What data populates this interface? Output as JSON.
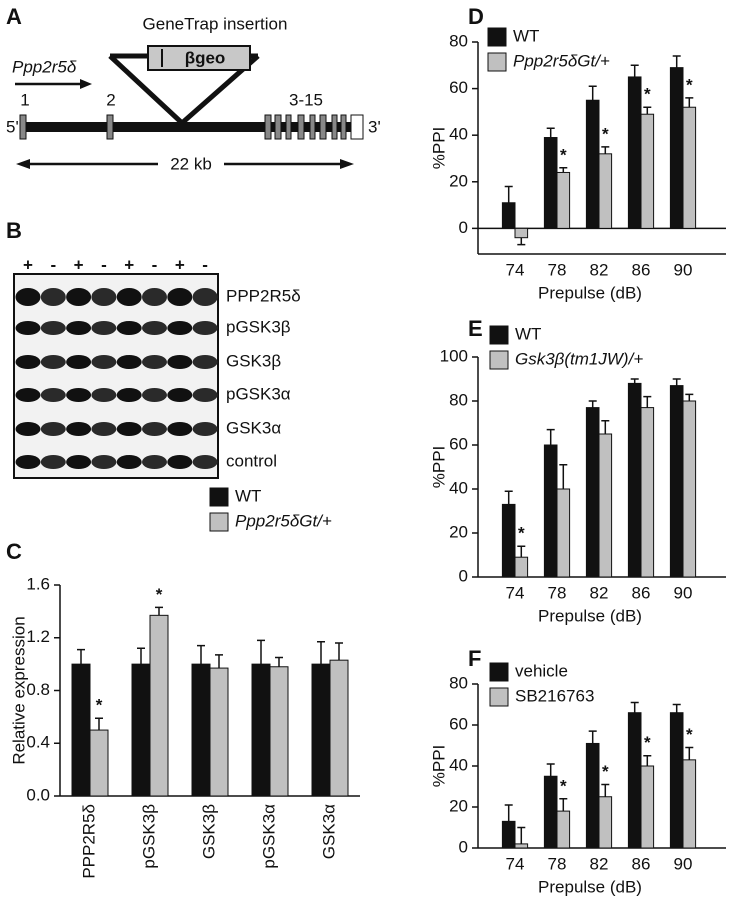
{
  "diagram": {
    "label": "A",
    "title": "GeneTrap insertion",
    "cassette": "βgeo",
    "gene": "Ppp2r5δ",
    "exons": [
      "1",
      "2",
      "3-15"
    ],
    "five_prime": "5'",
    "three_prime": "3'",
    "length": "22 kb"
  },
  "blot": {
    "label": "B",
    "lanes": [
      "+",
      "-",
      "+",
      "-",
      "+",
      "-",
      "+",
      "-"
    ],
    "bands": [
      "PPP2R5δ",
      "pGSK3β",
      "GSK3β",
      "pGSK3α",
      "GSK3α",
      "control"
    ]
  },
  "chart_data": [
    {
      "type": "bar",
      "label": "C",
      "y_label": "Relative expression",
      "categories": [
        "PPP2R5δ",
        "pGSK3β",
        "GSK3β",
        "pGSK3α",
        "GSK3α"
      ],
      "series": [
        {
          "name": "WT",
          "color": "#111111",
          "values": [
            1,
            1,
            1,
            1,
            1
          ],
          "errors": [
            0.11,
            0.12,
            0.14,
            0.18,
            0.17
          ]
        },
        {
          "name": "Ppp2r5δGt/+",
          "color": "#c0c0c0",
          "values": [
            0.5,
            1.37,
            0.97,
            0.98,
            1.03
          ],
          "errors": [
            0.09,
            0.06,
            0.1,
            0.07,
            0.13
          ],
          "markers": [
            "*",
            "*",
            null,
            null,
            null
          ]
        }
      ],
      "ylim": [
        0,
        1.6
      ],
      "yticks": [
        {
          "value": 0,
          "label": "0.0"
        },
        0.4,
        0.8,
        1.2,
        1.6
      ]
    },
    {
      "type": "bar",
      "label": "D",
      "y_label": "%PPI",
      "x_label": "Prepulse (dB)",
      "categories": [
        "74",
        "78",
        "82",
        "86",
        "90"
      ],
      "series": [
        {
          "name": "WT",
          "color": "#111111",
          "values": [
            11,
            39,
            55,
            65,
            69
          ],
          "errors": [
            7,
            4,
            6,
            5,
            5
          ]
        },
        {
          "name": "Ppp2r5δGt/+",
          "color": "#c0c0c0",
          "values": [
            -4,
            24,
            32,
            49,
            52
          ],
          "errors": [
            3,
            2,
            3,
            3,
            4
          ],
          "markers": [
            null,
            "*",
            "*",
            "*",
            "*"
          ]
        }
      ],
      "ylim": [
        -11,
        80
      ],
      "yticks": [
        0,
        20,
        40,
        60,
        80
      ]
    },
    {
      "type": "bar",
      "label": "E",
      "y_label": "%PPI",
      "x_label": "Prepulse (dB)",
      "categories": [
        "74",
        "78",
        "82",
        "86",
        "90"
      ],
      "series": [
        {
          "name": "WT",
          "color": "#111111",
          "values": [
            33,
            60,
            77,
            88,
            87
          ],
          "errors": [
            6,
            7,
            3,
            2,
            3
          ]
        },
        {
          "name": "Gsk3β(tm1JW)/+",
          "color": "#c0c0c0",
          "values": [
            9,
            40,
            65,
            77,
            80
          ],
          "errors": [
            5,
            11,
            6,
            5,
            3
          ],
          "markers": [
            "*",
            null,
            null,
            null,
            null
          ]
        }
      ],
      "ylim": [
        0,
        100
      ],
      "yticks": [
        0,
        20,
        40,
        60,
        80,
        100
      ]
    },
    {
      "type": "bar",
      "label": "F",
      "y_label": "%PPI",
      "x_label": "Prepulse (dB)",
      "categories": [
        "74",
        "78",
        "82",
        "86",
        "90"
      ],
      "series": [
        {
          "name": "vehicle",
          "color": "#111111",
          "values": [
            13,
            35,
            51,
            66,
            66
          ],
          "errors": [
            8,
            6,
            6,
            5,
            4
          ]
        },
        {
          "name": "SB216763",
          "color": "#c0c0c0",
          "values": [
            2,
            18,
            25,
            40,
            43
          ],
          "errors": [
            8,
            6,
            6,
            5,
            6
          ],
          "markers": [
            null,
            "*",
            "*",
            "*",
            "*"
          ]
        }
      ],
      "ylim": [
        0,
        80
      ],
      "yticks": [
        0,
        20,
        40,
        60,
        80
      ]
    }
  ]
}
